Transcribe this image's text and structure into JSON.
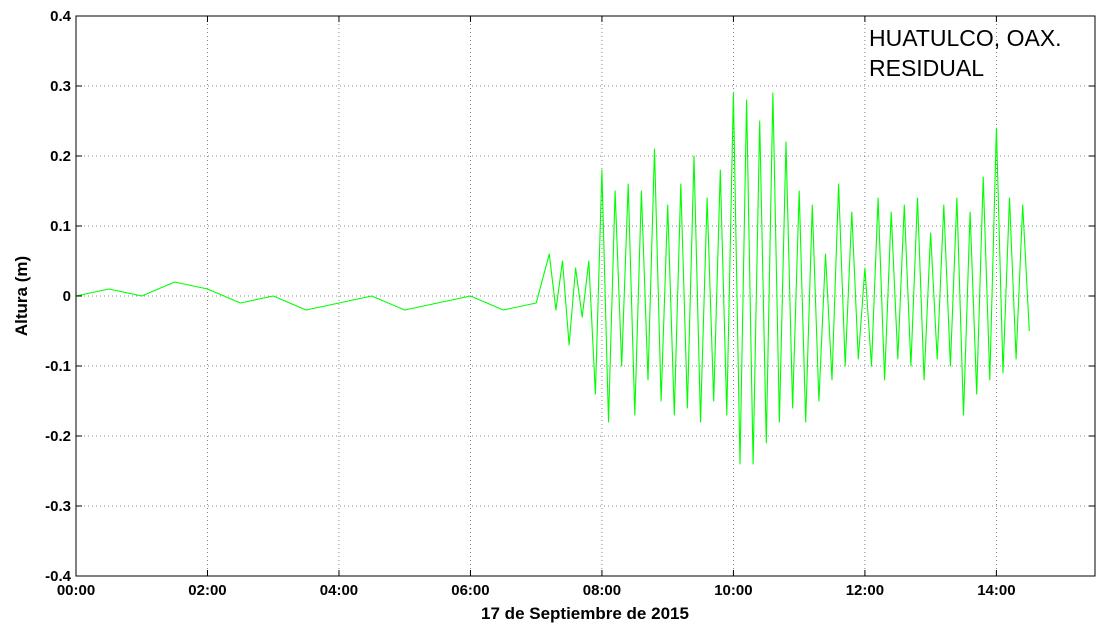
{
  "chart_data": {
    "type": "line",
    "title": "",
    "annotations": [
      "HUATULCO, OAX.",
      "RESIDUAL"
    ],
    "xlabel": "17 de Septiembre de 2015",
    "ylabel": "Altura (m)",
    "x_unit": "hours since 00:00",
    "xlim": [
      0,
      15.5
    ],
    "ylim": [
      -0.4,
      0.4
    ],
    "x_ticks": [
      0,
      2,
      4,
      6,
      8,
      10,
      12,
      14
    ],
    "x_tick_labels": [
      "00:00",
      "02:00",
      "04:00",
      "06:00",
      "08:00",
      "10:00",
      "12:00",
      "14:00"
    ],
    "y_ticks": [
      -0.4,
      -0.3,
      -0.2,
      -0.1,
      0,
      0.1,
      0.2,
      0.3,
      0.4
    ],
    "y_tick_labels": [
      "-0.4",
      "-0.3",
      "-0.2",
      "-0.1",
      "0",
      "0.1",
      "0.2",
      "0.3",
      "0.4"
    ],
    "grid": true,
    "series": [
      {
        "color": "#00ff00",
        "x": [
          0.0,
          0.5,
          1.0,
          1.5,
          2.0,
          2.5,
          3.0,
          3.5,
          4.0,
          4.5,
          5.0,
          5.5,
          6.0,
          6.5,
          7.0,
          7.2,
          7.3,
          7.4,
          7.5,
          7.6,
          7.7,
          7.8,
          7.9,
          8.0,
          8.1,
          8.2,
          8.3,
          8.4,
          8.5,
          8.6,
          8.7,
          8.8,
          8.9,
          9.0,
          9.1,
          9.2,
          9.3,
          9.4,
          9.5,
          9.6,
          9.7,
          9.8,
          9.9,
          10.0,
          10.1,
          10.2,
          10.3,
          10.4,
          10.5,
          10.6,
          10.7,
          10.8,
          10.9,
          11.0,
          11.1,
          11.2,
          11.3,
          11.4,
          11.5,
          11.6,
          11.7,
          11.8,
          11.9,
          12.0,
          12.1,
          12.2,
          12.3,
          12.4,
          12.5,
          12.6,
          12.7,
          12.8,
          12.9,
          13.0,
          13.1,
          13.2,
          13.3,
          13.4,
          13.5,
          13.6,
          13.7,
          13.8,
          13.9,
          14.0,
          14.1,
          14.2,
          14.3,
          14.4,
          14.5
        ],
        "y": [
          0.0,
          0.01,
          0.0,
          0.02,
          0.01,
          -0.01,
          0.0,
          -0.02,
          -0.01,
          0.0,
          -0.02,
          -0.01,
          0.0,
          -0.02,
          -0.01,
          0.06,
          -0.02,
          0.05,
          -0.07,
          0.04,
          -0.03,
          0.05,
          -0.14,
          0.18,
          -0.18,
          0.15,
          -0.1,
          0.16,
          -0.17,
          0.15,
          -0.12,
          0.21,
          -0.15,
          0.13,
          -0.17,
          0.16,
          -0.16,
          0.2,
          -0.18,
          0.14,
          -0.15,
          0.18,
          -0.17,
          0.29,
          -0.24,
          0.28,
          -0.24,
          0.25,
          -0.21,
          0.29,
          -0.18,
          0.22,
          -0.16,
          0.15,
          -0.18,
          0.13,
          -0.15,
          0.06,
          -0.12,
          0.16,
          -0.1,
          0.12,
          -0.09,
          0.04,
          -0.1,
          0.14,
          -0.12,
          0.12,
          -0.09,
          0.13,
          -0.1,
          0.14,
          -0.12,
          0.09,
          -0.09,
          0.13,
          -0.1,
          0.14,
          -0.17,
          0.12,
          -0.14,
          0.17,
          -0.12,
          0.24,
          -0.11,
          0.14,
          -0.09,
          0.13,
          -0.05
        ]
      }
    ]
  }
}
